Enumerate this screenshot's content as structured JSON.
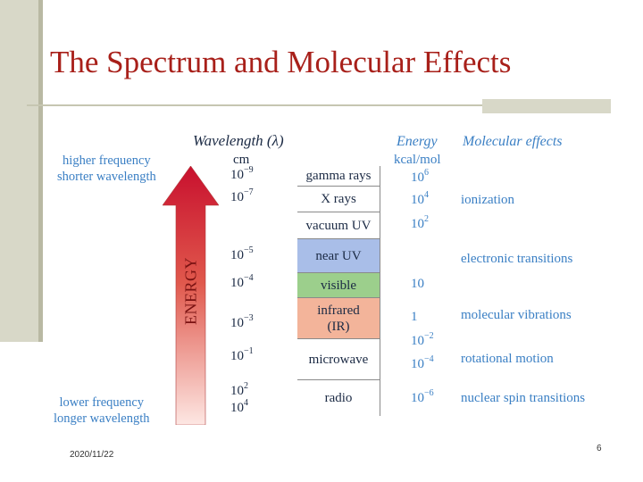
{
  "title": "The Spectrum and Molecular Effects",
  "headers": {
    "wavelength": "Wavelength (λ)",
    "wavelength_unit": "cm",
    "energy": "Energy",
    "energy_unit": "kcal/mol",
    "molecular": "Molecular effects"
  },
  "side": {
    "top_line1": "higher frequency",
    "top_line2": "shorter wavelength",
    "bottom_line1": "lower frequency",
    "bottom_line2": "longer wavelength",
    "energy": "ENERGY"
  },
  "wavelengths": [
    {
      "base": "10",
      "exp": "−9"
    },
    {
      "base": "10",
      "exp": "−7"
    },
    {
      "base": "10",
      "exp": "−5"
    },
    {
      "base": "10",
      "exp": "−4"
    },
    {
      "base": "10",
      "exp": "−3"
    },
    {
      "base": "10",
      "exp": "−1"
    },
    {
      "base": "10",
      "exp": "2"
    },
    {
      "base": "10",
      "exp": "4"
    }
  ],
  "regions": [
    {
      "label": "gamma rays",
      "color": "#ffffff"
    },
    {
      "label": "X rays",
      "color": "#ffffff"
    },
    {
      "label": "vacuum UV",
      "color": "#ffffff"
    },
    {
      "label": "near UV",
      "color": "#a9bee8"
    },
    {
      "label": "visible",
      "color": "#9ccf8c"
    },
    {
      "label": "infrared\n(IR)",
      "color": "#f3b49a"
    },
    {
      "label": "microwave",
      "color": "#ffffff"
    },
    {
      "label": "radio",
      "color": "#ffffff"
    }
  ],
  "energies": [
    {
      "base": "10",
      "exp": "6"
    },
    {
      "base": "10",
      "exp": "4"
    },
    {
      "base": "10",
      "exp": "2"
    },
    {
      "base": "10",
      "exp": ""
    },
    {
      "base": "1",
      "exp": ""
    },
    {
      "base": "10",
      "exp": "−2"
    },
    {
      "base": "10",
      "exp": "−4"
    },
    {
      "base": "10",
      "exp": "−6"
    }
  ],
  "effects": [
    "ionization",
    "electronic transitions",
    "molecular vibrations",
    "rotational motion",
    "nuclear spin transitions"
  ],
  "colors": {
    "title": "#a8201a",
    "accent_blue": "#3a7fc4",
    "arrow_top": "#c8102e",
    "arrow_bottom": "#fde7e3"
  },
  "footer": {
    "date": "2020/11/22",
    "page": "6"
  }
}
